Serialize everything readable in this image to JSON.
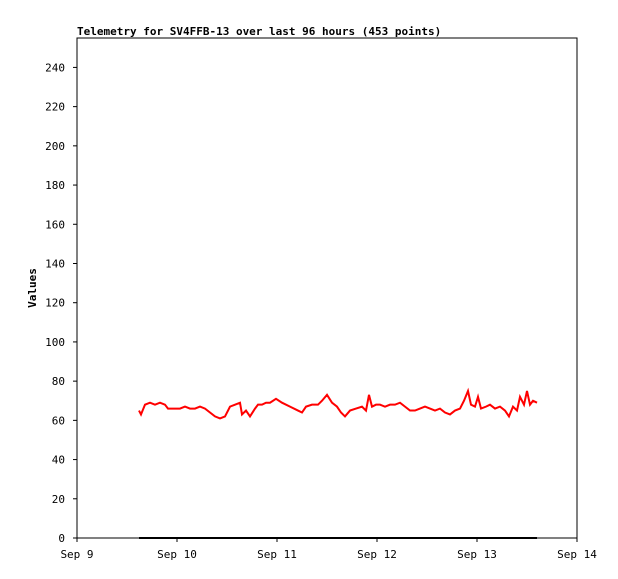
{
  "chart_data": {
    "type": "line",
    "title": "Telemetry for SV4FFB-13 over last 96 hours (453 points)",
    "ylabel": "Values",
    "xlim": [
      9,
      14
    ],
    "xticks": [
      {
        "value": 9,
        "label": "Sep 9"
      },
      {
        "value": 10,
        "label": "Sep 10"
      },
      {
        "value": 11,
        "label": "Sep 11"
      },
      {
        "value": 12,
        "label": "Sep 12"
      },
      {
        "value": 13,
        "label": "Sep 13"
      },
      {
        "value": 14,
        "label": "Sep 14"
      }
    ],
    "ylim": [
      0,
      255
    ],
    "yticks": [
      0,
      20,
      40,
      60,
      80,
      100,
      120,
      140,
      160,
      180,
      200,
      220,
      240
    ],
    "series": [
      {
        "color": "#ff0000",
        "x": [
          9.62,
          9.64,
          9.68,
          9.73,
          9.78,
          9.83,
          9.88,
          9.91,
          9.98,
          10.03,
          10.08,
          10.13,
          10.18,
          10.23,
          10.28,
          10.33,
          10.38,
          10.43,
          10.48,
          10.53,
          10.58,
          10.63,
          10.65,
          10.69,
          10.73,
          10.78,
          10.81,
          10.85,
          10.89,
          10.93,
          10.99,
          11.05,
          11.13,
          11.21,
          11.25,
          11.29,
          11.35,
          11.41,
          11.45,
          11.5,
          11.55,
          11.6,
          11.64,
          11.68,
          11.73,
          11.79,
          11.85,
          11.89,
          11.92,
          11.95,
          11.99,
          12.03,
          12.08,
          12.13,
          12.18,
          12.23,
          12.28,
          12.33,
          12.38,
          12.43,
          12.48,
          12.53,
          12.58,
          12.63,
          12.68,
          12.73,
          12.78,
          12.83,
          12.87,
          12.91,
          12.94,
          12.98,
          13.01,
          13.04,
          13.09,
          13.13,
          13.18,
          13.23,
          13.28,
          13.32,
          13.36,
          13.4,
          13.43,
          13.47,
          13.5,
          13.53,
          13.56,
          13.6
        ],
        "values": [
          65,
          63,
          68,
          69,
          68,
          69,
          68,
          66,
          66,
          66,
          67,
          66,
          66,
          67,
          66,
          64,
          62,
          61,
          62,
          67,
          68,
          69,
          63,
          65,
          62,
          66,
          68,
          68,
          69,
          69,
          71,
          69,
          67,
          65,
          64,
          67,
          68,
          68,
          70,
          73,
          69,
          67,
          64,
          62,
          65,
          66,
          67,
          65,
          73,
          67,
          68,
          68,
          67,
          68,
          68,
          69,
          67,
          65,
          65,
          66,
          67,
          66,
          65,
          66,
          64,
          63,
          65,
          66,
          70,
          75,
          68,
          67,
          72,
          66,
          67,
          68,
          66,
          67,
          65,
          62,
          67,
          65,
          72,
          68,
          75,
          68,
          70,
          69
        ]
      },
      {
        "color": "#000000",
        "x": [
          9.62,
          13.6
        ],
        "values": [
          0,
          0
        ]
      }
    ]
  }
}
